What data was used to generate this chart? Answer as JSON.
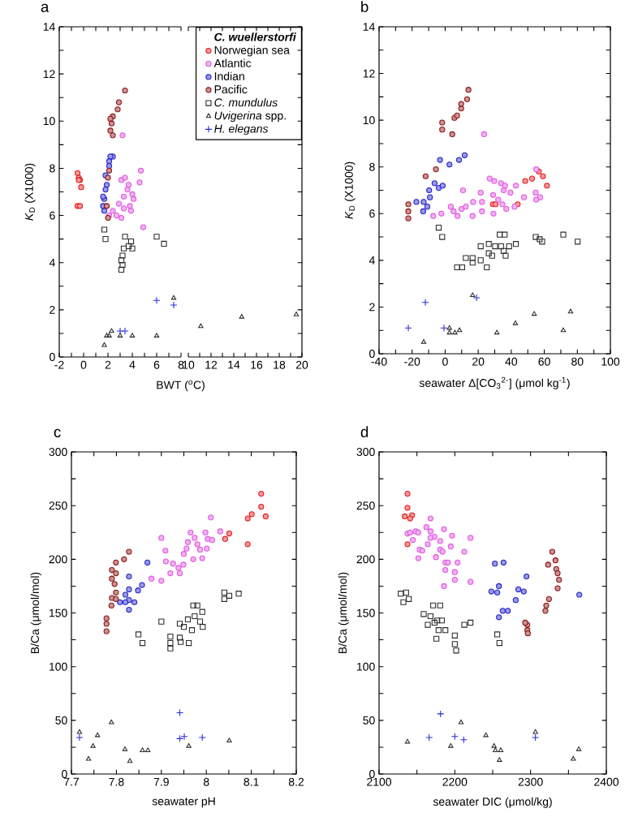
{
  "chart_data": [
    {
      "type": "scatter",
      "title": "a",
      "xlabel": "BWT ($^{o}$C)",
      "ylabel": "*K*$_{D}$ (X1000)",
      "legend_title": "C. wuellerstorfi",
      "legend": "top right",
      "xlim": [
        -2,
        8
      ],
      "ylim": [
        0,
        14
      ],
      "xticks": [
        -2,
        {
          "value": -1,
          "label": null
        },
        0,
        {
          "value": 1,
          "label": null
        },
        2,
        {
          "value": 3,
          "label": null
        },
        4,
        {
          "value": 5,
          "label": null
        },
        6,
        {
          "value": 7,
          "label": null
        },
        8
      ],
      "yticks": [
        0,
        {
          "value": 1,
          "label": null
        },
        2,
        {
          "value": 3,
          "label": null
        },
        4,
        {
          "value": 5,
          "label": null
        },
        6,
        {
          "value": 7,
          "label": null
        },
        8,
        {
          "value": 9,
          "label": null
        },
        10,
        {
          "value": 11,
          "label": null
        },
        12,
        {
          "value": 13,
          "label": null
        },
        14
      ],
      "series": [
        {
          "name": "Norwegian sea",
          "color": "#e41a1c",
          "marker": "circle",
          "x": [
            -0.5,
            -0.4,
            -0.3,
            -0.4,
            -0.2,
            -0.5,
            -0.3
          ],
          "values": [
            7.8,
            7.6,
            7.5,
            7.5,
            7.2,
            6.4,
            6.4
          ]
        },
        {
          "name": "Atlantic",
          "color": "#e055e0",
          "marker": "circle",
          "x": [
            3.2,
            4.7,
            4.6,
            4.9,
            3.1,
            3.6,
            3.3,
            3.8,
            2.9,
            2.7,
            3.1,
            2.4,
            4.0,
            4.1,
            2.1,
            3.4,
            3.7,
            3.9,
            3.3
          ],
          "values": [
            9.4,
            7.9,
            7.4,
            5.5,
            7.5,
            7.1,
            6.8,
            6.4,
            6.5,
            6.0,
            5.9,
            6.2,
            6.9,
            6.7,
            6.0,
            7.6,
            7.3,
            6.2,
            6.3
          ]
        },
        {
          "name": "Indian",
          "color": "#1f1fc8",
          "marker": "circle",
          "x": [
            2.4,
            2.2,
            2.1,
            2.1,
            1.9,
            1.8,
            1.7,
            1.6,
            1.7,
            1.6,
            1.8
          ],
          "values": [
            8.5,
            8.5,
            8.3,
            8.1,
            7.3,
            7.1,
            6.7,
            6.4,
            6.2,
            6.8,
            7.7
          ]
        },
        {
          "name": "Pacific",
          "color": "#8b1010",
          "marker": "circle",
          "x": [
            3.4,
            2.9,
            2.8,
            2.4,
            2.2,
            2.3,
            2.2,
            2.4,
            2.1,
            2.0,
            1.9,
            2.0
          ],
          "values": [
            11.3,
            10.8,
            10.5,
            10.2,
            10.1,
            9.9,
            9.6,
            9.4,
            7.9,
            7.6,
            6.4,
            5.9
          ]
        },
        {
          "name": "*C. mundulus*",
          "color": "#2b2b2b",
          "marker": "square",
          "x": [
            1.7,
            1.8,
            3.1,
            3.1,
            3.2,
            3.3,
            3.4,
            3.7,
            3.9,
            4.0,
            3.2,
            6.0,
            6.6
          ],
          "values": [
            5.4,
            5.0,
            4.1,
            3.7,
            4.3,
            4.6,
            5.1,
            4.7,
            4.9,
            4.6,
            3.9,
            5.1,
            4.8
          ]
        },
        {
          "name": "*Uvigerina* spp.",
          "color": "#2b2b2b",
          "marker": "triangle",
          "x": [
            1.7,
            1.9,
            2.1,
            2.3,
            3.0,
            4.0,
            6.0,
            7.4
          ],
          "values": [
            0.5,
            0.9,
            0.9,
            1.1,
            0.9,
            0.9,
            0.9,
            2.5
          ]
        },
        {
          "name": "*H. elegans*",
          "color": "#2b2bd6",
          "marker": "cross",
          "x": [
            3.0,
            3.4,
            6.0,
            7.4
          ],
          "values": [
            1.1,
            1.1,
            2.4,
            2.2
          ]
        }
      ]
    },
    {
      "type": "scatter",
      "tick_labels": "x",
      "xlim": [
        10,
        20
      ],
      "ylim": [
        0,
        14
      ],
      "xticks": [
        10,
        {
          "value": 11,
          "label": null
        },
        12,
        {
          "value": 13,
          "label": null
        },
        14,
        {
          "value": 15,
          "label": null
        },
        16,
        {
          "value": 17,
          "label": null
        },
        18,
        {
          "value": 19,
          "label": null
        },
        20
      ],
      "yticks": [
        0,
        {
          "value": 1,
          "label": null
        },
        2,
        {
          "value": 3,
          "label": null
        },
        4,
        {
          "value": 5,
          "label": null
        },
        6,
        {
          "value": 7,
          "label": null
        },
        8,
        {
          "value": 9,
          "label": null
        },
        10,
        {
          "value": 11,
          "label": null
        },
        12,
        {
          "value": 13,
          "label": null
        },
        14
      ],
      "series": [
        {
          "color": "#2b2b2b",
          "marker": "triangle",
          "x": [
            11.1,
            14.7,
            19.5
          ],
          "values": [
            1.3,
            1.7,
            1.8
          ]
        }
      ]
    },
    {
      "type": "scatter",
      "title": "b",
      "xlabel": "seawater  Δ[CO$_{3}$$^{2-}$] (μmol kg$^{-1}$)",
      "ylabel": "*K*$_{D}$ (X1000)",
      "xlim": [
        -40,
        100
      ],
      "ylim": [
        0,
        14
      ],
      "xticks": [
        -40,
        {
          "value": -30,
          "label": null
        },
        -20,
        {
          "value": -10,
          "label": null
        },
        0,
        {
          "value": 10,
          "label": null
        },
        20,
        {
          "value": 30,
          "label": null
        },
        40,
        {
          "value": 50,
          "label": null
        },
        60,
        {
          "value": 70,
          "label": null
        },
        80,
        {
          "value": 90,
          "label": null
        },
        100
      ],
      "yticks": [
        0,
        {
          "value": 1,
          "label": null
        },
        2,
        {
          "value": 3,
          "label": null
        },
        4,
        {
          "value": 5,
          "label": null
        },
        6,
        {
          "value": 7,
          "label": null
        },
        8,
        {
          "value": 9,
          "label": null
        },
        10,
        {
          "value": 11,
          "label": null
        },
        12,
        {
          "value": 13,
          "label": null
        },
        14
      ],
      "series": [
        {
          "color": "#e41a1c",
          "marker": "circle",
          "x": [
            48.5,
            52.6,
            56.7,
            59.2,
            61.6,
            43.9,
            28.9,
            30.5
          ],
          "values": [
            7.4,
            7.5,
            7.8,
            7.6,
            7.2,
            6.4,
            6.4,
            6.4
          ]
        },
        {
          "color": "#e055e0",
          "marker": "circle",
          "x": [
            23.6,
            -7.2,
            -2.3,
            3.4,
            5.1,
            7.5,
            10.8,
            9.9,
            12.5,
            16.9,
            16.6,
            21.5,
            22.3,
            22.3,
            26.9,
            29.7,
            29.0,
            29.2,
            33.8,
            35.4,
            36.2,
            34.6,
            37.0,
            39.5,
            42.8,
            42.0,
            47.7,
            55.1,
            54.8,
            57.5,
            55.1,
            32.1
          ],
          "values": [
            9.4,
            5.9,
            6.0,
            6.3,
            6.1,
            5.9,
            7.0,
            6.2,
            6.3,
            6.5,
            5.9,
            6.9,
            6.5,
            6.1,
            7.5,
            7.4,
            6.8,
            6.0,
            7.3,
            7.0,
            7.2,
            6.4,
            6.2,
            6.9,
            7.2,
            6.3,
            6.7,
            7.9,
            6.9,
            6.7,
            6.6,
            6.6
          ]
        },
        {
          "color": "#1f1fc8",
          "marker": "circle",
          "x": [
            -17.4,
            -13.0,
            -13.3,
            -10.8,
            -9.7,
            -9.2,
            -6.4,
            -3.9,
            -1.5,
            -3.1,
            2.6,
            8.4,
            11.8
          ],
          "values": [
            6.5,
            6.5,
            6.1,
            6.3,
            7.0,
            6.7,
            7.3,
            7.1,
            7.2,
            8.3,
            8.1,
            8.3,
            8.5
          ]
        },
        {
          "color": "#8b1010",
          "marker": "circle",
          "x": [
            -22.3,
            -22.3,
            -22.3,
            -11.8,
            -5.6,
            -1.8,
            -1.8,
            4.3,
            5.6,
            7.2,
            9.7,
            9.7,
            13.3,
            14.1
          ],
          "values": [
            6.4,
            6.1,
            5.8,
            7.6,
            7.9,
            9.9,
            9.6,
            9.4,
            10.1,
            10.2,
            10.5,
            10.7,
            10.9,
            11.3
          ]
        },
        {
          "color": "#2b2b2b",
          "marker": "square",
          "x": [
            -3.9,
            -1.8,
            7.2,
            10.3,
            12.5,
            16.6,
            16.6,
            21.5,
            21.5,
            25.2,
            26.4,
            26.4,
            28.4,
            30.2,
            33.0,
            36.0,
            33.8,
            35.4,
            36.6,
            38.7,
            42.8,
            54.8,
            57.2,
            58.7,
            71.5,
            80.2
          ],
          "values": [
            5.4,
            5.0,
            3.7,
            3.7,
            4.1,
            4.1,
            3.9,
            4.6,
            4.0,
            3.7,
            4.7,
            4.3,
            4.2,
            4.6,
            5.1,
            5.1,
            4.6,
            4.4,
            4.2,
            4.6,
            4.7,
            5.0,
            4.9,
            4.8,
            5.1,
            4.8
          ]
        },
        {
          "color": "#2b2b2b",
          "marker": "triangle",
          "x": [
            -13.0,
            2.6,
            2.6,
            5.9,
            8.7,
            16.6,
            31.3,
            42.5,
            53.9,
            71.5,
            75.9
          ],
          "values": [
            0.5,
            1.1,
            0.9,
            0.9,
            1.0,
            2.5,
            0.9,
            1.3,
            1.7,
            1.0,
            1.8
          ]
        },
        {
          "color": "#2b2bd6",
          "marker": "cross",
          "x": [
            -22.3,
            -12.0,
            -0.7,
            19.0
          ],
          "values": [
            1.1,
            2.2,
            1.1,
            2.4
          ]
        }
      ]
    },
    {
      "type": "scatter",
      "title": "c",
      "xlabel": "seawater pH",
      "ylabel": "B/Ca (μmol/mol)",
      "xlim": [
        7.7,
        8.2
      ],
      "ylim": [
        0,
        300
      ],
      "xticks": [
        7.7,
        {
          "value": 7.75,
          "label": null
        },
        7.8,
        {
          "value": 7.85,
          "label": null
        },
        7.9,
        {
          "value": 7.95,
          "label": null
        },
        8,
        {
          "value": 8.05,
          "label": null
        },
        8.1,
        {
          "value": 8.15,
          "label": null
        },
        8.2
      ],
      "yticks": [
        0,
        {
          "value": 25,
          "label": null
        },
        50,
        {
          "value": 75,
          "label": null
        },
        100,
        {
          "value": 125,
          "label": null
        },
        150,
        {
          "value": 175,
          "label": null
        },
        200,
        {
          "value": 225,
          "label": null
        },
        250,
        {
          "value": 275,
          "label": null
        },
        300
      ],
      "series": [
        {
          "color": "#e41a1c",
          "marker": "circle",
          "x": [
            8.122,
            8.122,
            8.132,
            8.092,
            8.101,
            8.092,
            8.051,
            8.042
          ],
          "values": [
            261,
            249,
            240,
            238,
            242,
            214,
            224,
            219
          ]
        },
        {
          "color": "#e055e0",
          "marker": "circle",
          "x": [
            8.01,
            7.9,
            7.909,
            7.91,
            7.926,
            7.938,
            7.941,
            7.92,
            7.878,
            7.9,
            7.95,
            7.956,
            7.959,
            7.965,
            7.974,
            7.98,
            7.986,
            7.971,
            7.998,
            8.003,
            7.991,
            8.001,
            8.013,
            8.031,
            7.949
          ],
          "values": [
            239,
            220,
            208,
            198,
            196,
            192,
            187,
            187,
            182,
            180,
            205,
            210,
            216,
            225,
            220,
            214,
            209,
            200,
            225,
            219,
            201,
            210,
            218,
            226,
            195
          ]
        },
        {
          "color": "#1f1fc8",
          "marker": "circle",
          "x": [
            7.869,
            7.828,
            7.828,
            7.82,
            7.828,
            7.808,
            7.82,
            7.84,
            7.828,
            7.848,
            7.857
          ],
          "values": [
            197,
            184,
            172,
            167,
            162,
            160,
            160,
            160,
            153,
            171,
            176
          ]
        },
        {
          "color": "#8b1010",
          "marker": "circle",
          "x": [
            7.828,
            7.817,
            7.799,
            7.79,
            7.799,
            7.79,
            7.796,
            7.799,
            7.79,
            7.799,
            7.789,
            7.778,
            7.778,
            7.778
          ],
          "values": [
            207,
            200,
            197,
            190,
            187,
            182,
            177,
            169,
            164,
            163,
            157,
            145,
            140,
            133
          ]
        },
        {
          "color": "#2b2b2b",
          "marker": "square",
          "x": [
            7.849,
            7.858,
            7.9,
            7.92,
            7.92,
            7.92,
            7.941,
            7.941,
            7.943,
            7.95,
            7.961,
            7.959,
            7.971,
            7.98,
            7.974,
            7.986,
            7.991,
            7.992,
            7.968,
            8.04,
            8.04,
            8.051,
            8.072
          ],
          "values": [
            130,
            122,
            142,
            128,
            122,
            117,
            140,
            127,
            123,
            137,
            122,
            144,
            157,
            157,
            147,
            142,
            151,
            137,
            134,
            169,
            163,
            166,
            168
          ]
        },
        {
          "color": "#2b2b2b",
          "marker": "triangle",
          "x": [
            7.718,
            7.738,
            7.748,
            7.789,
            7.819,
            7.83,
            7.858,
            7.87,
            7.961,
            8.051,
            7.758
          ],
          "values": [
            39,
            14,
            26,
            48,
            23,
            12,
            22,
            22,
            26,
            31,
            36
          ]
        },
        {
          "color": "#2b2bd6",
          "marker": "cross",
          "x": [
            7.718,
            7.941,
            7.941,
            7.951,
            7.991
          ],
          "values": [
            34,
            57,
            33,
            35,
            34
          ]
        }
      ]
    },
    {
      "type": "scatter",
      "title": "d",
      "xlabel": "seawater DIC (μmol/kg)",
      "ylabel": "B/Ca (μmol/mol)",
      "xlim": [
        2100,
        2400
      ],
      "ylim": [
        0,
        300
      ],
      "xticks": [
        2100,
        {
          "value": 2150,
          "label": null
        },
        2200,
        {
          "value": 2250,
          "label": null
        },
        2300,
        {
          "value": 2350,
          "label": null
        },
        2400
      ],
      "yticks": [
        0,
        {
          "value": 25,
          "label": null
        },
        50,
        {
          "value": 75,
          "label": null
        },
        100,
        {
          "value": 125,
          "label": null
        },
        150,
        {
          "value": 175,
          "label": null
        },
        200,
        {
          "value": 225,
          "label": null
        },
        250,
        {
          "value": 275,
          "label": null
        },
        300
      ],
      "series": [
        {
          "color": "#e41a1c",
          "marker": "circle",
          "x": [
            2137.5,
            2137.5,
            2133.9,
            2143.6,
            2141,
            2137.5
          ],
          "values": [
            261,
            248,
            240,
            241,
            238,
            214
          ]
        },
        {
          "color": "#e055e0",
          "marker": "circle",
          "x": [
            2167.9,
            2137.5,
            2141,
            2148.2,
            2151.8,
            2144.6,
            2153.6,
            2157.1,
            2151.8,
            2162.5,
            2164.3,
            2167.9,
            2173.2,
            2180.7,
            2180.7,
            2175,
            2183.9,
            2187.5,
            2185.7,
            2187.5,
            2191,
            2196.4,
            2194.6,
            2200,
            2200,
            2185.7,
            2203.6,
            2212.5,
            2220.7,
            2220.7,
            2167.9
          ],
          "values": [
            238,
            224,
            225,
            226,
            225,
            218,
            209,
            208,
            201,
            230,
            214,
            226,
            221,
            217,
            209,
            202,
            207,
            197,
            228,
            190,
            197,
            222,
            212,
            188,
            181,
            175,
            197,
            207,
            220,
            179,
            220
          ]
        },
        {
          "color": "#1f1fc8",
          "marker": "circle",
          "x": [
            2252.9,
            2264.3,
            2248.2,
            2256,
            2258.2,
            2258.2,
            2263.2,
            2270,
            2280.4,
            2283.9,
            2291,
            2294.6,
            2364.3
          ],
          "values": [
            196,
            197,
            170,
            169,
            175,
            146,
            152,
            152,
            162,
            172,
            170,
            184,
            167
          ]
        },
        {
          "color": "#8b1010",
          "marker": "circle",
          "x": [
            2328.6,
            2323.2,
            2332.9,
            2333.9,
            2335.7,
            2337.5,
            2335.7,
            2324.3,
            2320.7,
            2319.6,
            2295.7,
            2295.7,
            2296.4,
            2292.9
          ],
          "values": [
            207,
            195,
            199,
            191,
            187,
            181,
            173,
            163,
            157,
            152,
            139,
            134,
            131,
            141
          ]
        },
        {
          "color": "#2b2b2b",
          "marker": "square",
          "x": [
            2128.6,
            2135.7,
            2132.1,
            2139.3,
            2158.9,
            2171.4,
            2180.7,
            2167.9,
            2164.3,
            2173.2,
            2176.8,
            2182.9,
            2178.6,
            2187.5,
            2175.7,
            2200,
            2200,
            2201.8,
            2212.5,
            2220.7,
            2256,
            2258.9
          ],
          "values": [
            168,
            169,
            160,
            163,
            149,
            157,
            157,
            147,
            139,
            141,
            143,
            143,
            134,
            134,
            126,
            129,
            121,
            115,
            139,
            141,
            130,
            122
          ]
        },
        {
          "color": "#2b2b2b",
          "marker": "triangle",
          "x": [
            2137.5,
            2194.6,
            2208.2,
            2241,
            2251.8,
            2253.6,
            2260.7,
            2258.9,
            2306.4,
            2356.4,
            2363.6
          ],
          "values": [
            30,
            26,
            48,
            36,
            26,
            22,
            22,
            13,
            39,
            14,
            23
          ]
        },
        {
          "color": "#2b2bd6",
          "marker": "cross",
          "x": [
            2166.1,
            2181.1,
            2200,
            2211.8,
            2306.4
          ],
          "values": [
            34,
            56,
            35,
            32,
            34
          ]
        }
      ]
    }
  ]
}
